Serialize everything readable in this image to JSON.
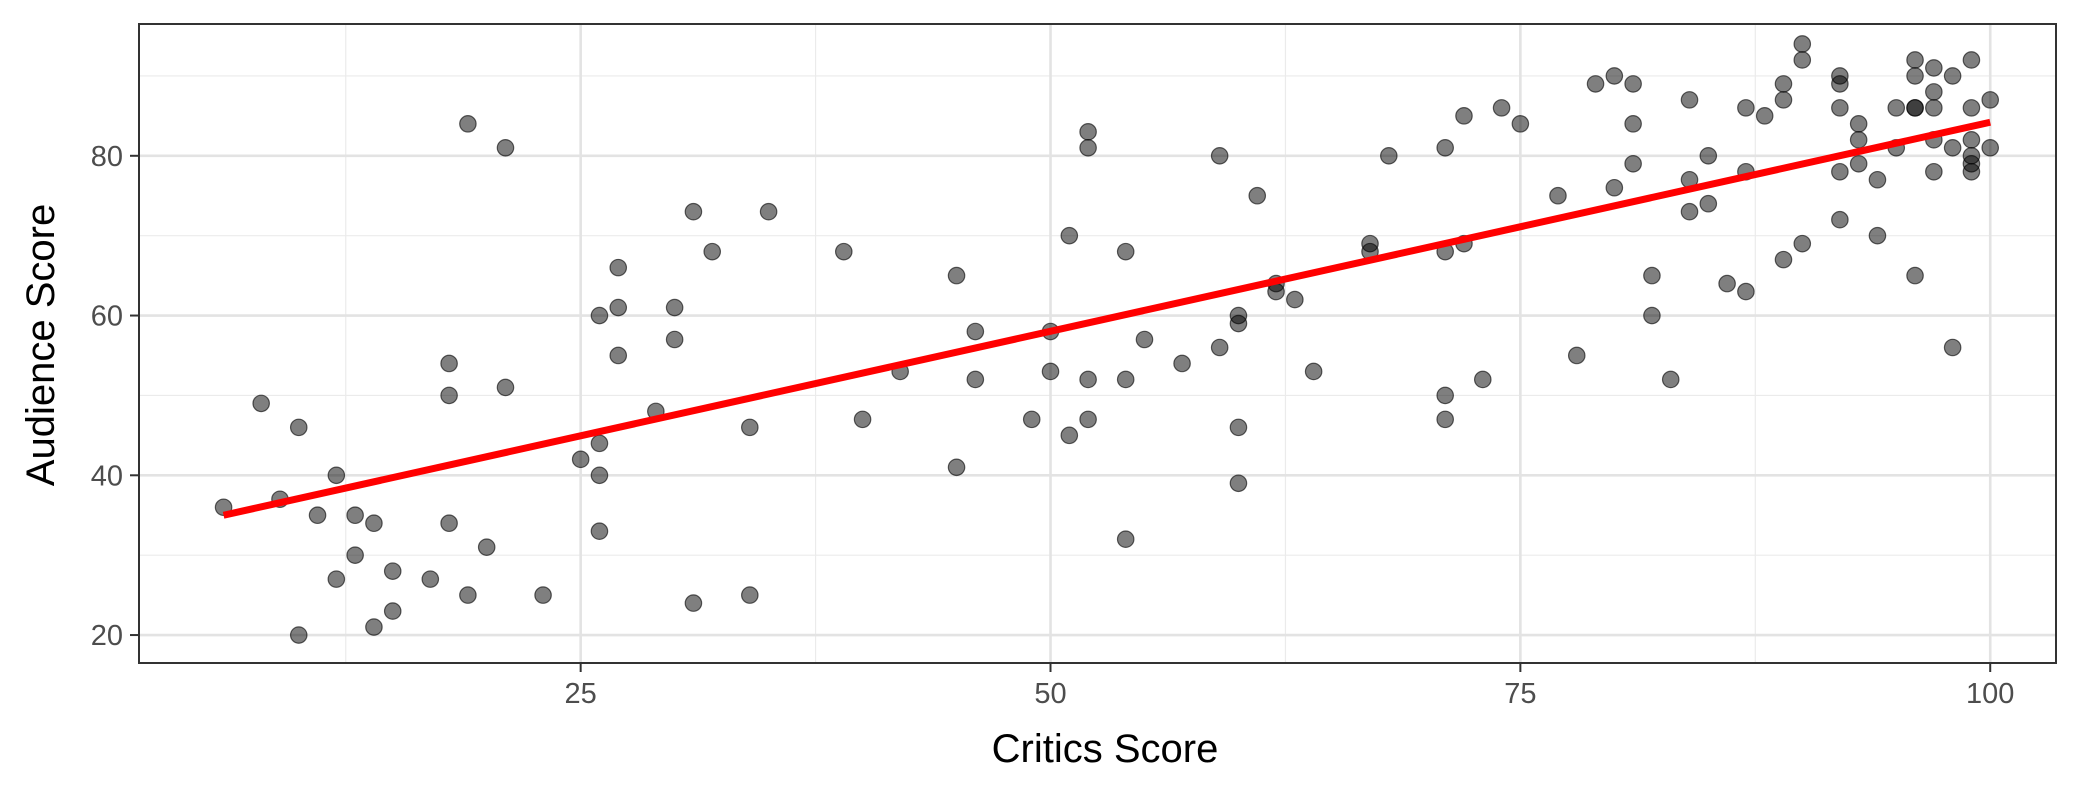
{
  "chart_data": {
    "type": "scatter",
    "xlabel": "Critics Score",
    "ylabel": "Audience Score",
    "xlim": [
      1.5,
      103.5
    ],
    "ylim": [
      16.5,
      96.5
    ],
    "x_ticks": [
      25,
      50,
      75,
      100
    ],
    "y_ticks": [
      20,
      40,
      60,
      80
    ],
    "x_tick_labels": [
      "25",
      "50",
      "75",
      "100"
    ],
    "y_tick_labels": [
      "20",
      "40",
      "60",
      "80"
    ],
    "x_minor_ticks": [
      12.5,
      37.5,
      62.5,
      87.5
    ],
    "y_minor_ticks": [
      30,
      50,
      70,
      90
    ],
    "grid": true,
    "point_color": "#000000",
    "point_opacity": 0.5,
    "line_color": "#ff0000",
    "points": [
      [
        6,
        36
      ],
      [
        8,
        49
      ],
      [
        9,
        37
      ],
      [
        10,
        46
      ],
      [
        10,
        20
      ],
      [
        11,
        35
      ],
      [
        12,
        40
      ],
      [
        12,
        27
      ],
      [
        13,
        35
      ],
      [
        13,
        30
      ],
      [
        14,
        34
      ],
      [
        14,
        21
      ],
      [
        15,
        28
      ],
      [
        15,
        23
      ],
      [
        17,
        27
      ],
      [
        18,
        54
      ],
      [
        18,
        50
      ],
      [
        18,
        34
      ],
      [
        19,
        84
      ],
      [
        19,
        25
      ],
      [
        20,
        31
      ],
      [
        21,
        81
      ],
      [
        21,
        51
      ],
      [
        23,
        25
      ],
      [
        25,
        42
      ],
      [
        26,
        60
      ],
      [
        26,
        44
      ],
      [
        26,
        40
      ],
      [
        26,
        33
      ],
      [
        27,
        66
      ],
      [
        27,
        61
      ],
      [
        27,
        55
      ],
      [
        29,
        48
      ],
      [
        30,
        61
      ],
      [
        30,
        57
      ],
      [
        31,
        73
      ],
      [
        31,
        24
      ],
      [
        32,
        68
      ],
      [
        34,
        46
      ],
      [
        34,
        25
      ],
      [
        35,
        73
      ],
      [
        39,
        68
      ],
      [
        40,
        47
      ],
      [
        42,
        53
      ],
      [
        45,
        65
      ],
      [
        45,
        41
      ],
      [
        46,
        58
      ],
      [
        46,
        52
      ],
      [
        49,
        47
      ],
      [
        50,
        58
      ],
      [
        50,
        53
      ],
      [
        51,
        70
      ],
      [
        51,
        45
      ],
      [
        52,
        83
      ],
      [
        52,
        81
      ],
      [
        52,
        52
      ],
      [
        52,
        47
      ],
      [
        54,
        68
      ],
      [
        54,
        52
      ],
      [
        54,
        32
      ],
      [
        55,
        57
      ],
      [
        57,
        54
      ],
      [
        59,
        80
      ],
      [
        59,
        56
      ],
      [
        60,
        60
      ],
      [
        60,
        59
      ],
      [
        60,
        46
      ],
      [
        60,
        39
      ],
      [
        61,
        75
      ],
      [
        62,
        64
      ],
      [
        62,
        63
      ],
      [
        63,
        62
      ],
      [
        64,
        53
      ],
      [
        67,
        69
      ],
      [
        67,
        68
      ],
      [
        68,
        80
      ],
      [
        71,
        81
      ],
      [
        71,
        68
      ],
      [
        71,
        50
      ],
      [
        71,
        47
      ],
      [
        72,
        85
      ],
      [
        72,
        69
      ],
      [
        73,
        52
      ],
      [
        74,
        86
      ],
      [
        75,
        84
      ],
      [
        77,
        75
      ],
      [
        78,
        55
      ],
      [
        79,
        89
      ],
      [
        80,
        90
      ],
      [
        80,
        76
      ],
      [
        81,
        89
      ],
      [
        81,
        84
      ],
      [
        81,
        79
      ],
      [
        82,
        65
      ],
      [
        82,
        60
      ],
      [
        83,
        52
      ],
      [
        84,
        87
      ],
      [
        84,
        77
      ],
      [
        84,
        73
      ],
      [
        85,
        80
      ],
      [
        85,
        74
      ],
      [
        86,
        64
      ],
      [
        87,
        86
      ],
      [
        87,
        78
      ],
      [
        87,
        63
      ],
      [
        88,
        85
      ],
      [
        89,
        89
      ],
      [
        89,
        87
      ],
      [
        89,
        67
      ],
      [
        90,
        94
      ],
      [
        90,
        92
      ],
      [
        90,
        69
      ],
      [
        92,
        90
      ],
      [
        92,
        89
      ],
      [
        92,
        86
      ],
      [
        92,
        78
      ],
      [
        92,
        72
      ],
      [
        93,
        84
      ],
      [
        93,
        82
      ],
      [
        93,
        79
      ],
      [
        94,
        77
      ],
      [
        94,
        70
      ],
      [
        95,
        86
      ],
      [
        95,
        81
      ],
      [
        96,
        92
      ],
      [
        96,
        90
      ],
      [
        96,
        86
      ],
      [
        96,
        86
      ],
      [
        96,
        65
      ],
      [
        97,
        91
      ],
      [
        97,
        88
      ],
      [
        97,
        86
      ],
      [
        97,
        82
      ],
      [
        97,
        78
      ],
      [
        98,
        90
      ],
      [
        98,
        81
      ],
      [
        98,
        56
      ],
      [
        99,
        92
      ],
      [
        99,
        86
      ],
      [
        99,
        82
      ],
      [
        99,
        80
      ],
      [
        99,
        79
      ],
      [
        99,
        78
      ],
      [
        100,
        87
      ],
      [
        100,
        81
      ]
    ],
    "trend_line": {
      "x": [
        6,
        100
      ],
      "y": [
        35,
        84.2
      ]
    }
  }
}
